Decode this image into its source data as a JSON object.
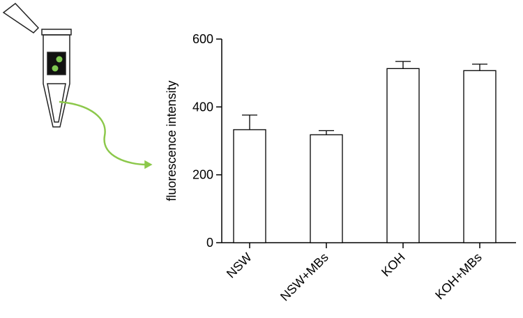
{
  "chart_data": {
    "type": "bar",
    "ylabel": "fluorescence intensity",
    "categories": [
      "NSW",
      "NSW+MBs",
      "KOH",
      "KOH+MBs"
    ],
    "values": [
      333,
      318,
      513,
      507
    ],
    "errors": [
      43,
      12,
      21,
      19
    ],
    "bar_fill": "#ffffff",
    "edge_color": "#000000",
    "ylim": [
      0,
      600
    ],
    "yticks": [
      0,
      200,
      400,
      600
    ]
  }
}
